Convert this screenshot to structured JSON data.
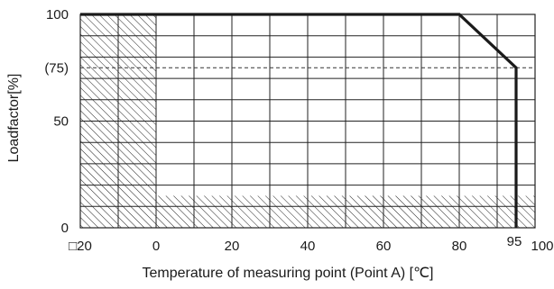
{
  "chart_data": {
    "type": "line",
    "title": "",
    "xlabel": "Temperature of measuring point (Point A) [℃]",
    "ylabel": "Loadfactor[%]",
    "xlim": [
      -20,
      100
    ],
    "ylim": [
      0,
      100
    ],
    "x_ticks": [
      {
        "value": -20,
        "label": "□20"
      },
      {
        "value": 0,
        "label": "0"
      },
      {
        "value": 20,
        "label": "20"
      },
      {
        "value": 40,
        "label": "40"
      },
      {
        "value": 60,
        "label": "60"
      },
      {
        "value": 80,
        "label": "80"
      },
      {
        "value": 95,
        "label": "95"
      },
      {
        "value": 100,
        "label": "100"
      }
    ],
    "y_ticks": [
      {
        "value": 0,
        "label": "0"
      },
      {
        "value": 50,
        "label": "50"
      },
      {
        "value": 75,
        "label": "(75)"
      },
      {
        "value": 100,
        "label": "100"
      }
    ],
    "grid": true,
    "x_grid_step": 10,
    "y_grid_step": 10,
    "series": [
      {
        "x": [
          -20,
          80,
          95,
          95
        ],
        "y": [
          100,
          100,
          75,
          0
        ],
        "color": "#1a1a1a"
      }
    ],
    "reference_lines": [
      {
        "axis": "y",
        "value": 75,
        "style": "dashed"
      }
    ],
    "hatched_regions": [
      {
        "x": [
          -20,
          0
        ],
        "y": [
          0,
          100
        ]
      },
      {
        "x": [
          0,
          100
        ],
        "y": [
          0,
          15
        ]
      }
    ]
  }
}
